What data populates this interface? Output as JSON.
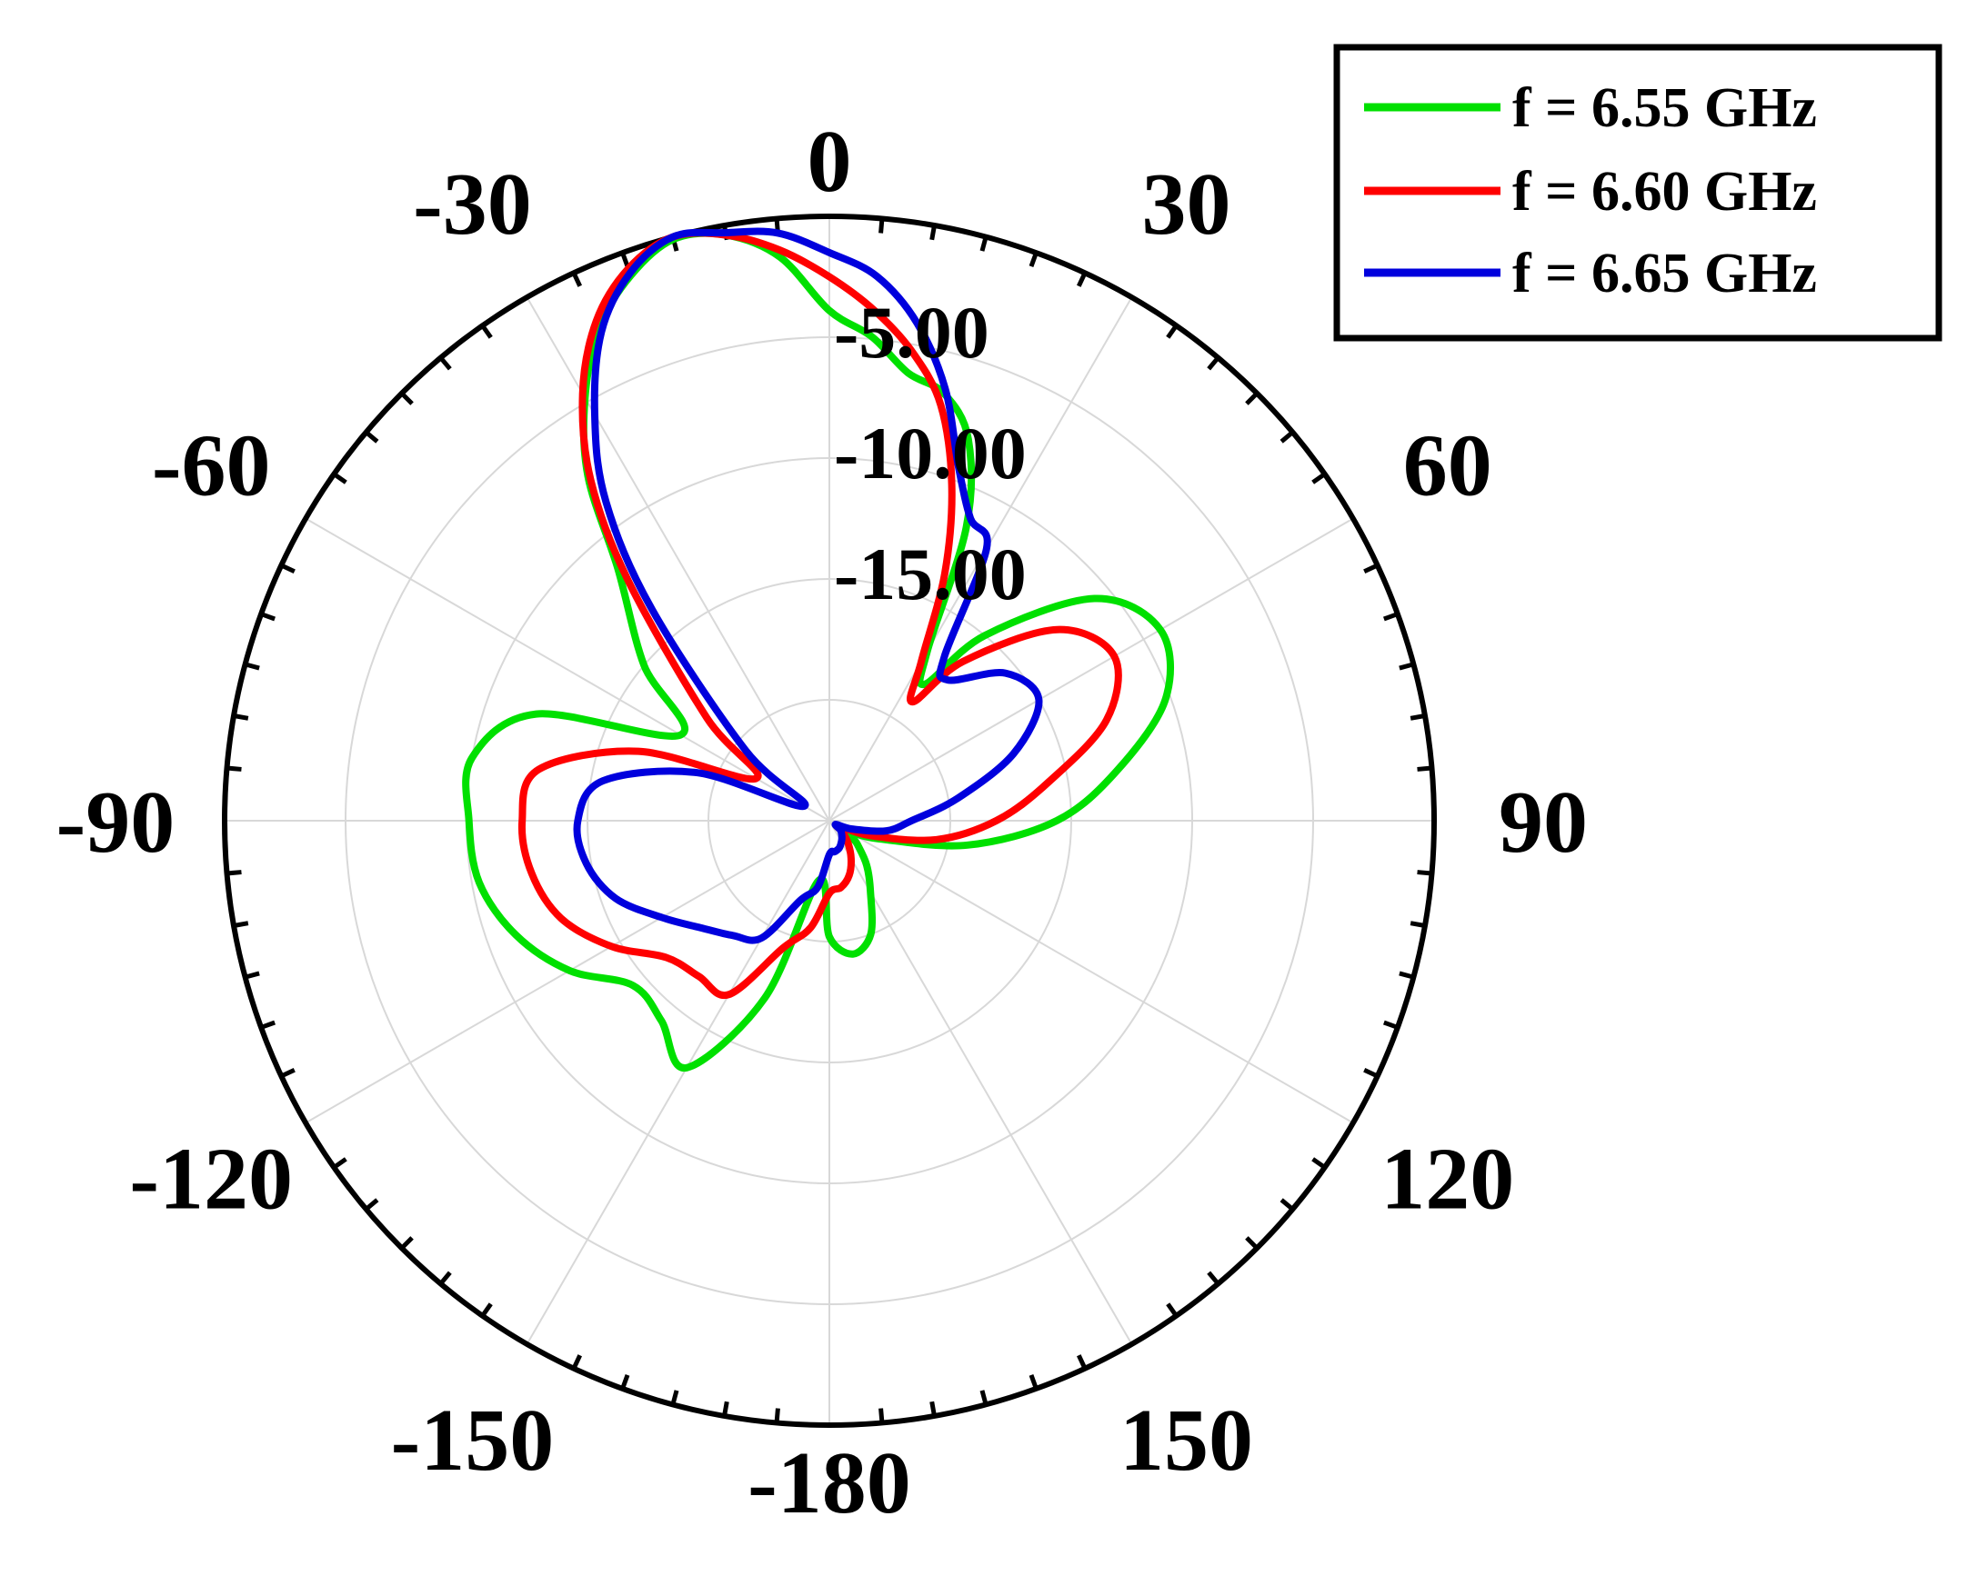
{
  "chart_data": {
    "type": "line",
    "subtype": "polar",
    "title": "",
    "angle_unit": "deg",
    "angle_zero": "top",
    "angle_direction": "clockwise",
    "angle_tick_labels": [
      "0",
      "30",
      "60",
      "90",
      "120",
      "150",
      "-180",
      "-150",
      "-120",
      "-90",
      "-60",
      "-30"
    ],
    "angle_ticks": [
      0,
      30,
      60,
      90,
      120,
      150,
      180,
      -150,
      -120,
      -90,
      -60,
      -30
    ],
    "radial_range": [
      -25,
      0
    ],
    "radial_tick_labels": [
      "-5.00",
      "-10.00",
      "-15.00"
    ],
    "radial_ticks": [
      -5,
      -10,
      -15
    ],
    "grid": true,
    "legend_position": "top-right",
    "series": [
      {
        "name": "f = 6.55 GHz",
        "color": "#00e000",
        "theta": [
          -180,
          -170,
          -160,
          -150,
          -140,
          -130,
          -120,
          -110,
          -100,
          -90,
          -80,
          -70,
          -60,
          -50,
          -40,
          -35,
          -30,
          -25,
          -20,
          -15,
          -10,
          -5,
          0,
          5,
          10,
          15,
          20,
          25,
          30,
          35,
          40,
          50,
          60,
          70,
          80,
          90,
          100,
          110,
          120,
          130,
          140,
          150,
          160,
          170,
          180
        ],
        "values": [
          -20.2,
          -22.5,
          -17.2,
          -13.2,
          -14.2,
          -14.4,
          -12.6,
          -11.2,
          -10.3,
          -10.1,
          -10.0,
          -12.1,
          -17.9,
          -15.0,
          -11.4,
          -7.6,
          -4.8,
          -2.5,
          -1.0,
          -0.1,
          -0.4,
          -1.6,
          -3.9,
          -4.9,
          -6.2,
          -6.7,
          -8.2,
          -11.6,
          -16.9,
          -18.1,
          -15.0,
          -10.7,
          -9.2,
          -10.2,
          -12.9,
          -15.6,
          -19.2,
          -22.8,
          -24.0,
          -23.5,
          -22.6,
          -21.6,
          -20.0,
          -19.4,
          -20.2
        ]
      },
      {
        "name": "f = 6.60 GHz",
        "color": "#ff0000",
        "theta": [
          -180,
          -170,
          -160,
          -150,
          -140,
          -130,
          -120,
          -110,
          -100,
          -90,
          -80,
          -70,
          -60,
          -50,
          -40,
          -35,
          -30,
          -25,
          -20,
          -15,
          -10,
          -5,
          0,
          5,
          10,
          15,
          20,
          25,
          30,
          35,
          40,
          50,
          60,
          70,
          80,
          90,
          100,
          110,
          120,
          130,
          140,
          150,
          160,
          170,
          180
        ],
        "values": [
          -22.0,
          -20.5,
          -19.4,
          -16.7,
          -16.6,
          -16.2,
          -14.6,
          -13.2,
          -12.5,
          -12.3,
          -12.8,
          -16.6,
          -21.5,
          -18.4,
          -12.1,
          -7.8,
          -4.6,
          -2.2,
          -0.7,
          0.0,
          -0.4,
          -1.3,
          -2.5,
          -3.8,
          -5.3,
          -7.2,
          -10.2,
          -13.7,
          -17.4,
          -19.0,
          -16.4,
          -12.7,
          -11.4,
          -12.8,
          -15.8,
          -18.1,
          -20.5,
          -23.2,
          -24.6,
          -24.3,
          -23.8,
          -23.2,
          -22.6,
          -22.2,
          -22.0
        ]
      },
      {
        "name": "f = 6.65 GHz",
        "color": "#0000dd",
        "theta": [
          -180,
          -170,
          -160,
          -150,
          -140,
          -130,
          -120,
          -110,
          -100,
          -90,
          -80,
          -70,
          -60,
          -50,
          -40,
          -35,
          -30,
          -25,
          -20,
          -15,
          -10,
          -5,
          0,
          5,
          10,
          15,
          20,
          25,
          30,
          35,
          40,
          50,
          60,
          70,
          80,
          90,
          100,
          110,
          120,
          130,
          140,
          150,
          160,
          170,
          180
        ],
        "values": [
          -23.6,
          -22.2,
          -21.5,
          -19.4,
          -18.8,
          -18.1,
          -17.0,
          -15.6,
          -14.8,
          -14.6,
          -15.5,
          -19.2,
          -23.8,
          -20.5,
          -13.6,
          -8.9,
          -5.6,
          -2.7,
          -0.9,
          0.0,
          -0.3,
          -0.6,
          -1.5,
          -2.4,
          -4.1,
          -6.5,
          -9.4,
          -11.2,
          -12.0,
          -16.7,
          -17.4,
          -15.5,
          -15.0,
          -16.9,
          -19.6,
          -21.6,
          -22.6,
          -24.0,
          -24.7,
          -24.4,
          -24.2,
          -24.0,
          -23.8,
          -23.7,
          -23.6
        ]
      }
    ]
  }
}
